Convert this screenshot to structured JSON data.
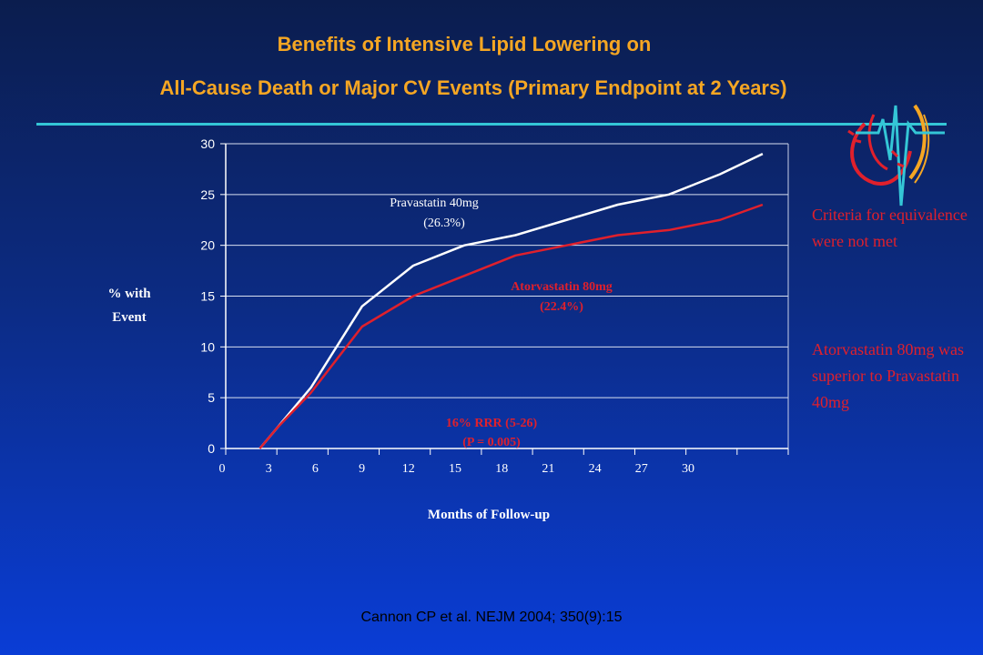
{
  "title_line1": "Benefits of Intensive Lipid Lowering on",
  "title_line2": "All-Cause Death or Major CV Events (Primary Endpoint at 2 Years)",
  "side_note_1": "Criteria for equivalence were not met",
  "side_note_2": "Atorvastatin 80mg was superior to Pravastatin 40mg",
  "citation": "Cannon CP  et al. NEJM 2004; 350(9):15",
  "colors": {
    "title": "#f5a623",
    "accent_line": "#34c6d6",
    "atorvastatin": "#e0202c",
    "pravastatin": "#ffffff"
  },
  "chart_data": {
    "type": "line",
    "title": "",
    "xlabel": "Months of Follow-up",
    "ylabel": "% with Event",
    "xlim": [
      0,
      33
    ],
    "ylim": [
      0,
      30
    ],
    "xticks": [
      0,
      3,
      6,
      9,
      12,
      15,
      18,
      21,
      24,
      27,
      30
    ],
    "yticks": [
      0,
      5,
      10,
      15,
      20,
      25,
      30
    ],
    "grid": "horizontal",
    "series": [
      {
        "name": "Pravastatin 40mg",
        "label_lines": [
          "Pravastatin 40mg",
          "(26.3%)"
        ],
        "color": "#ffffff",
        "x": [
          2,
          3,
          5,
          8,
          11,
          14,
          17,
          20,
          23,
          26,
          29,
          31.5
        ],
        "y": [
          0,
          2,
          6,
          14,
          18,
          20,
          21,
          22.5,
          24,
          25,
          27,
          29
        ]
      },
      {
        "name": "Atorvastatin 80mg",
        "label_lines": [
          "Atorvastatin 80mg",
          "(22.4%)"
        ],
        "color": "#e0202c",
        "x": [
          2,
          3,
          5,
          8,
          11,
          14,
          17,
          20,
          23,
          26,
          29,
          31.5
        ],
        "y": [
          0,
          2,
          5.5,
          12,
          15,
          17,
          19,
          20,
          21,
          21.5,
          22.5,
          24
        ]
      }
    ],
    "annotation_lines": [
      "16% RRR (5-26)",
      "(P = 0.005)"
    ]
  }
}
